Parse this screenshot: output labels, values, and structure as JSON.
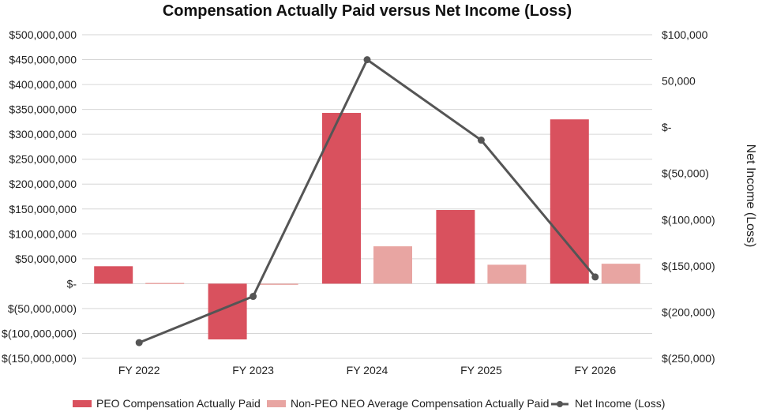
{
  "chart_data": {
    "type": "bar",
    "title": "Compensation Actually Paid versus Net Income (Loss)",
    "categories": [
      "FY 2022",
      "FY 2023",
      "FY 2024",
      "FY 2025",
      "FY 2026"
    ],
    "y_left": {
      "lim": [
        -150000000,
        500000000
      ],
      "ticks": [
        500000000,
        450000000,
        400000000,
        350000000,
        300000000,
        250000000,
        200000000,
        150000000,
        100000000,
        50000000,
        0,
        -50000000,
        -100000000,
        -150000000
      ],
      "tick_labels": [
        "$500,000,000",
        "$450,000,000",
        "$400,000,000",
        "$350,000,000",
        "$300,000,000",
        "$250,000,000",
        "$200,000,000",
        "$150,000,000",
        "$100,000,000",
        "$50,000,000",
        "$-",
        "$(50,000,000)",
        "$(100,000,000)",
        "$(150,000,000)"
      ]
    },
    "y_right": {
      "label": "Net Income (Loss)",
      "lim": [
        -250000,
        100000
      ],
      "ticks": [
        100000,
        50000,
        0,
        -50000,
        -100000,
        -150000,
        -200000,
        -250000
      ],
      "tick_labels": [
        "$100,000",
        "50,000",
        "$-",
        "$(50,000)",
        "$(100,000)",
        "$(150,000)",
        "$(200,000)",
        "$(250,000)"
      ]
    },
    "grid": true,
    "legend_position": "bottom",
    "series": [
      {
        "name": "PEO Compensation Actually Paid",
        "kind": "bar",
        "axis": "left",
        "color": "#d9515e",
        "values": [
          35000000,
          -112000000,
          343000000,
          148000000,
          330000000
        ]
      },
      {
        "name": "Non-PEO NEO Average Compensation Actually Paid",
        "kind": "bar",
        "axis": "left",
        "color": "#e8a5a2",
        "values": [
          1500000,
          -2000000,
          75000000,
          38000000,
          40000000
        ]
      },
      {
        "name": "Net Income (Loss)",
        "kind": "line",
        "axis": "right",
        "color": "#555555",
        "values": [
          -233000,
          -183000,
          73000,
          -14000,
          -162000
        ]
      }
    ]
  }
}
